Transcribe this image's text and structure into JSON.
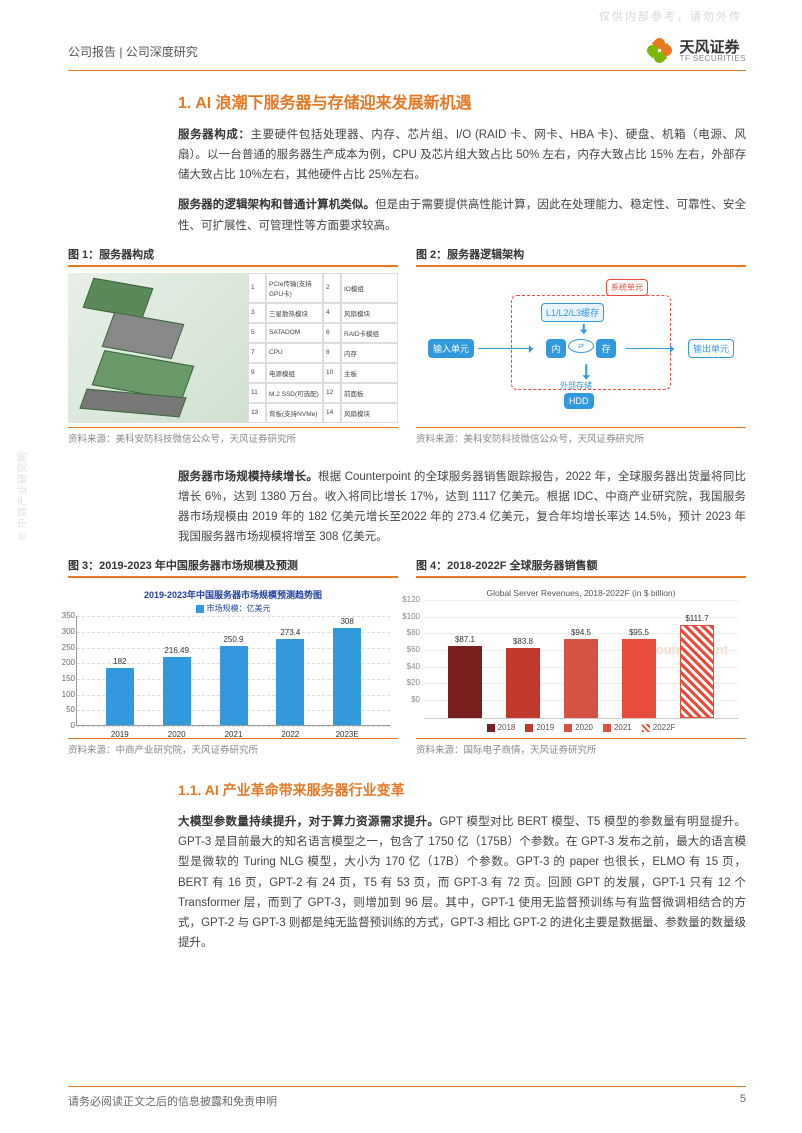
{
  "watermark_top": "仅供内部参考，请勿外传",
  "side_watermark": "© 中商产业研究院",
  "header": {
    "left": "公司报告 | 公司深度研究",
    "logo_cn": "天风证券",
    "logo_en": "TF SECURITIES"
  },
  "section1": {
    "heading": "1. AI 浪潮下服务器与存储迎来发展新机遇",
    "p1_bold": "服务器构成：",
    "p1": "主要硬件包括处理器、内存、芯片组、I/O (RAID 卡、网卡、HBA 卡)、硬盘、机箱（电源、风扇）。以一台普通的服务器生产成本为例，CPU 及芯片组大致占比 50% 左右，内存大致占比 15% 左右，外部存储大致占比 10%左右，其他硬件占比 25%左右。",
    "p2_bold": "服务器的逻辑架构和普通计算机类似。",
    "p2": "但是由于需要提供高性能计算，因此在处理能力、稳定性、可靠性、安全性、可扩展性、可管理性等方面要求较高。"
  },
  "fig1": {
    "title": "图 1：服务器构成",
    "source": "资料来源：美科安防科技微信公众号，天风证券研究所",
    "rows": [
      [
        "1",
        "PCIe传输(支持GPU卡)",
        "2",
        "IO模组"
      ],
      [
        "3",
        "三星散热模块",
        "4",
        "风扇模块"
      ],
      [
        "5",
        "SATADOM",
        "6",
        "RAID卡模组"
      ],
      [
        "7",
        "CPU",
        "8",
        "内存"
      ],
      [
        "9",
        "电源模组",
        "10",
        "主板"
      ],
      [
        "11",
        "M.2 SSD(可选配)",
        "12",
        "前面板"
      ],
      [
        "13",
        "背板(支持NVMe)",
        "14",
        "风扇模块"
      ]
    ]
  },
  "fig2": {
    "title": "图 2：服务器逻辑架构",
    "source": "资料来源：美科安防科技微信公众号，天风证券研究所",
    "nodes": {
      "system": "系统单元",
      "cache": "L1/L2/L3缓存",
      "input": "输入单元",
      "memory_l": "内",
      "memory_r": "存",
      "output": "输出单元",
      "ext": "外部存储",
      "hdd": "HDD"
    },
    "colors": {
      "red": "#e74c3c",
      "blue": "#3399dd",
      "border_red": "#e74c3c"
    }
  },
  "section2": {
    "p_bold": "服务器市场规模持续增长。",
    "p": "根据 Counterpoint 的全球服务器销售跟踪报告，2022 年，全球服务器出货量将同比增长 6%，达到 1380 万台。收入将同比增长 17%，达到 1117 亿美元。根据 IDC、中商产业研究院，我国服务器市场规模由 2019 年的 182 亿美元增长至2022 年的 273.4 亿美元，复合年均增长率达 14.5%，预计 2023 年我国服务器市场规模将增至 308 亿美元。"
  },
  "fig3": {
    "title": "图 3：2019-2023 年中国服务器市场规模及预测",
    "chart_title": "2019-2023年中国服务器市场规模预测趋势图",
    "legend": "市场规模：亿美元",
    "source": "资料来源：中商产业研究院，天风证券研究所",
    "categories": [
      "2019",
      "2020",
      "2021",
      "2022",
      "2023E"
    ],
    "values": [
      182,
      216.49,
      250.9,
      273.4,
      308
    ],
    "value_labels": [
      "182",
      "216.49",
      "250.9",
      "273.4",
      "308"
    ],
    "ymax": 350,
    "yticks": [
      0,
      50,
      100,
      150,
      200,
      250,
      300,
      350
    ],
    "bar_color": "#3399dd",
    "title_color": "#2040a0",
    "grid_color": "#dddddd"
  },
  "fig4": {
    "title": "图 4：2018-2022F 全球服务器销售额",
    "chart_title": "Global Server Revenues, 2018-2022F (in $ billion)",
    "source": "资料来源：国际电子商情，天风证券研究所",
    "categories": [
      "2018",
      "2019",
      "2020",
      "2021",
      "2022F"
    ],
    "values": [
      87.1,
      83.8,
      94.5,
      95.5,
      111.7
    ],
    "value_labels": [
      "$87.1",
      "$83.8",
      "$94.5",
      "$95.5",
      "$111.7"
    ],
    "colors": [
      "#7a1f1f",
      "#c0392b",
      "#d35445",
      "#e74c3c",
      "#e74c3c"
    ],
    "hatched": [
      false,
      false,
      false,
      false,
      true
    ],
    "ymax": 120,
    "yticks": [
      "$0",
      "$20",
      "$40",
      "$60",
      "$80",
      "$100",
      "$120"
    ],
    "grid_color": "#eeeeee",
    "watermark": "Counterpoint"
  },
  "section3": {
    "heading": "1.1. AI 产业革命带来服务器行业变革",
    "p_bold": "大模型参数量持续提升，对于算力资源需求提升。",
    "p": "GPT 模型对比 BERT 模型、T5 模型的参数量有明显提升。GPT-3 是目前最大的知名语言模型之一，包含了 1750 亿（175B）个参数。在 GPT-3 发布之前，最大的语言模型是微软的 Turing NLG 模型，大小为 170 亿（17B）个参数。GPT-3 的 paper 也很长，ELMO 有 15 页，BERT 有 16 页，GPT-2 有 24 页，T5 有 53 页，而 GPT-3 有 72 页。回顾 GPT 的发展，GPT-1 只有 12 个 Transformer 层，而到了 GPT-3，则增加到 96 层。其中，GPT-1 使用无监督预训练与有监督微调相结合的方式，GPT-2 与 GPT-3 则都是纯无监督预训练的方式，GPT-3 相比 GPT-2 的进化主要是数据量、参数量的数量级提升。"
  },
  "footer": {
    "disclaimer": "请务必阅读正文之后的信息披露和免责申明",
    "page": "5"
  }
}
